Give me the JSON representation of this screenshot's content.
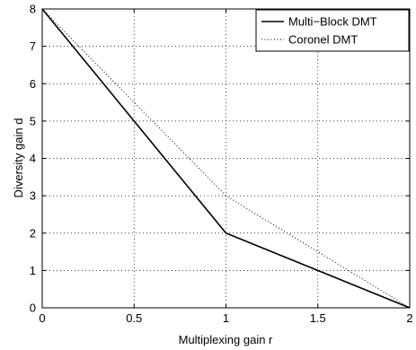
{
  "chart_data": {
    "type": "line",
    "xlabel": "Multiplexing gain r",
    "ylabel": "Diversity gain d",
    "xlim": [
      0,
      2
    ],
    "ylim": [
      0,
      8
    ],
    "xticks": [
      0,
      0.5,
      1,
      1.5,
      2
    ],
    "yticks": [
      0,
      1,
      2,
      3,
      4,
      5,
      6,
      7,
      8
    ],
    "xtick_labels": [
      "0",
      "0.5",
      "1",
      "1.5",
      "2"
    ],
    "ytick_labels": [
      "0",
      "1",
      "2",
      "3",
      "4",
      "5",
      "6",
      "7",
      "8"
    ],
    "grid": true,
    "legend_position": "top-right",
    "series": [
      {
        "name": "Multi−Block DMT",
        "style": "solid",
        "color": "#000000",
        "x": [
          0,
          1,
          2
        ],
        "y": [
          8,
          2,
          0
        ]
      },
      {
        "name": "Coronel DMT",
        "style": "dotted",
        "color": "#000000",
        "x": [
          0,
          1,
          2
        ],
        "y": [
          8,
          3,
          0
        ]
      }
    ]
  }
}
